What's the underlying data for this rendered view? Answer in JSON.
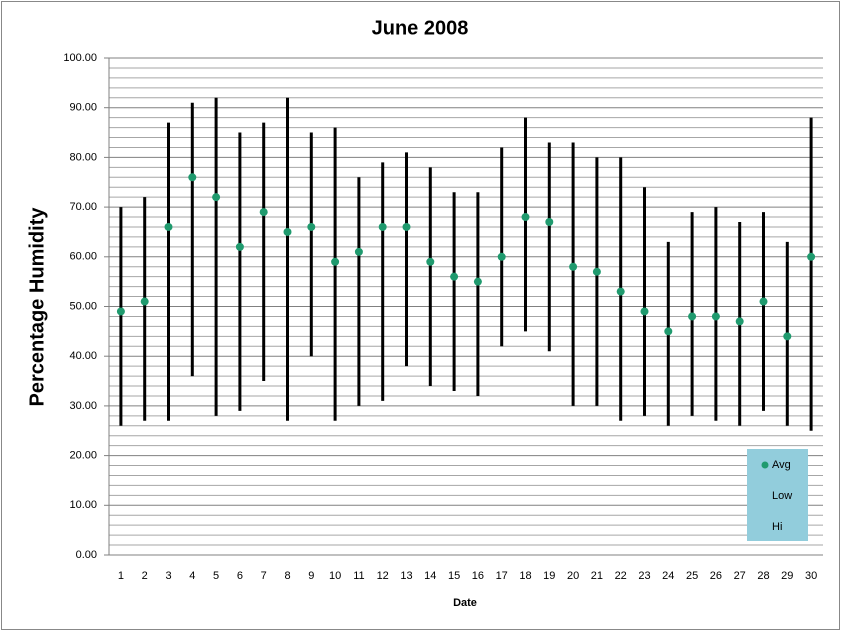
{
  "chart_data": {
    "type": "hilo",
    "title": "June 2008",
    "x_label": "Date",
    "y_label": "Percentage Humidity",
    "categories": [
      1,
      2,
      3,
      4,
      5,
      6,
      7,
      8,
      9,
      10,
      11,
      12,
      13,
      14,
      15,
      16,
      17,
      18,
      19,
      20,
      21,
      22,
      23,
      24,
      25,
      26,
      27,
      28,
      29,
      30
    ],
    "series": [
      {
        "name": "Hi",
        "color": "#000000",
        "marker": "none",
        "values": [
          70,
          72,
          87,
          91,
          92,
          85,
          87,
          92,
          85,
          86,
          76,
          79,
          81,
          78,
          73,
          73,
          82,
          88,
          83,
          83,
          80,
          80,
          74,
          63,
          69,
          70,
          67,
          69,
          63,
          88
        ]
      },
      {
        "name": "Low",
        "color": "#000000",
        "marker": "none",
        "values": [
          26,
          27,
          27,
          36,
          28,
          29,
          35,
          27,
          40,
          27,
          30,
          31,
          38,
          34,
          33,
          32,
          42,
          45,
          41,
          30,
          30,
          27,
          28,
          26,
          28,
          27,
          26,
          29,
          26,
          25
        ]
      },
      {
        "name": "Avg",
        "color": "#1f9a6e",
        "marker": "circle",
        "values": [
          49,
          51,
          66,
          76,
          72,
          62,
          69,
          65,
          66,
          59,
          61,
          66,
          66,
          59,
          56,
          55,
          60,
          68,
          67,
          58,
          57,
          53,
          49,
          45,
          48,
          48,
          47,
          51,
          44,
          60
        ]
      }
    ],
    "ylim": [
      0,
      100
    ],
    "yticks": [
      {
        "value": 0,
        "label": "0.00"
      },
      {
        "value": 10,
        "label": "10.00"
      },
      {
        "value": 20,
        "label": "20.00"
      },
      {
        "value": 30,
        "label": "30.00"
      },
      {
        "value": 40,
        "label": "40.00"
      },
      {
        "value": 50,
        "label": "50.00"
      },
      {
        "value": 60,
        "label": "60.00"
      },
      {
        "value": 70,
        "label": "70.00"
      },
      {
        "value": 80,
        "label": "80.00"
      },
      {
        "value": 90,
        "label": "90.00"
      },
      {
        "value": 100,
        "label": "100.00"
      }
    ],
    "yminorticks": [
      2,
      4,
      6,
      8,
      12,
      14,
      16,
      18,
      22,
      24,
      26,
      28,
      32,
      34,
      36,
      38,
      42,
      44,
      46,
      48,
      52,
      54,
      56,
      58,
      62,
      64,
      66,
      68,
      72,
      74,
      76,
      78,
      82,
      84,
      86,
      88,
      92,
      94,
      96,
      98
    ],
    "grid": true,
    "legend": "bottom-right",
    "legend_color": "#92cddc"
  }
}
